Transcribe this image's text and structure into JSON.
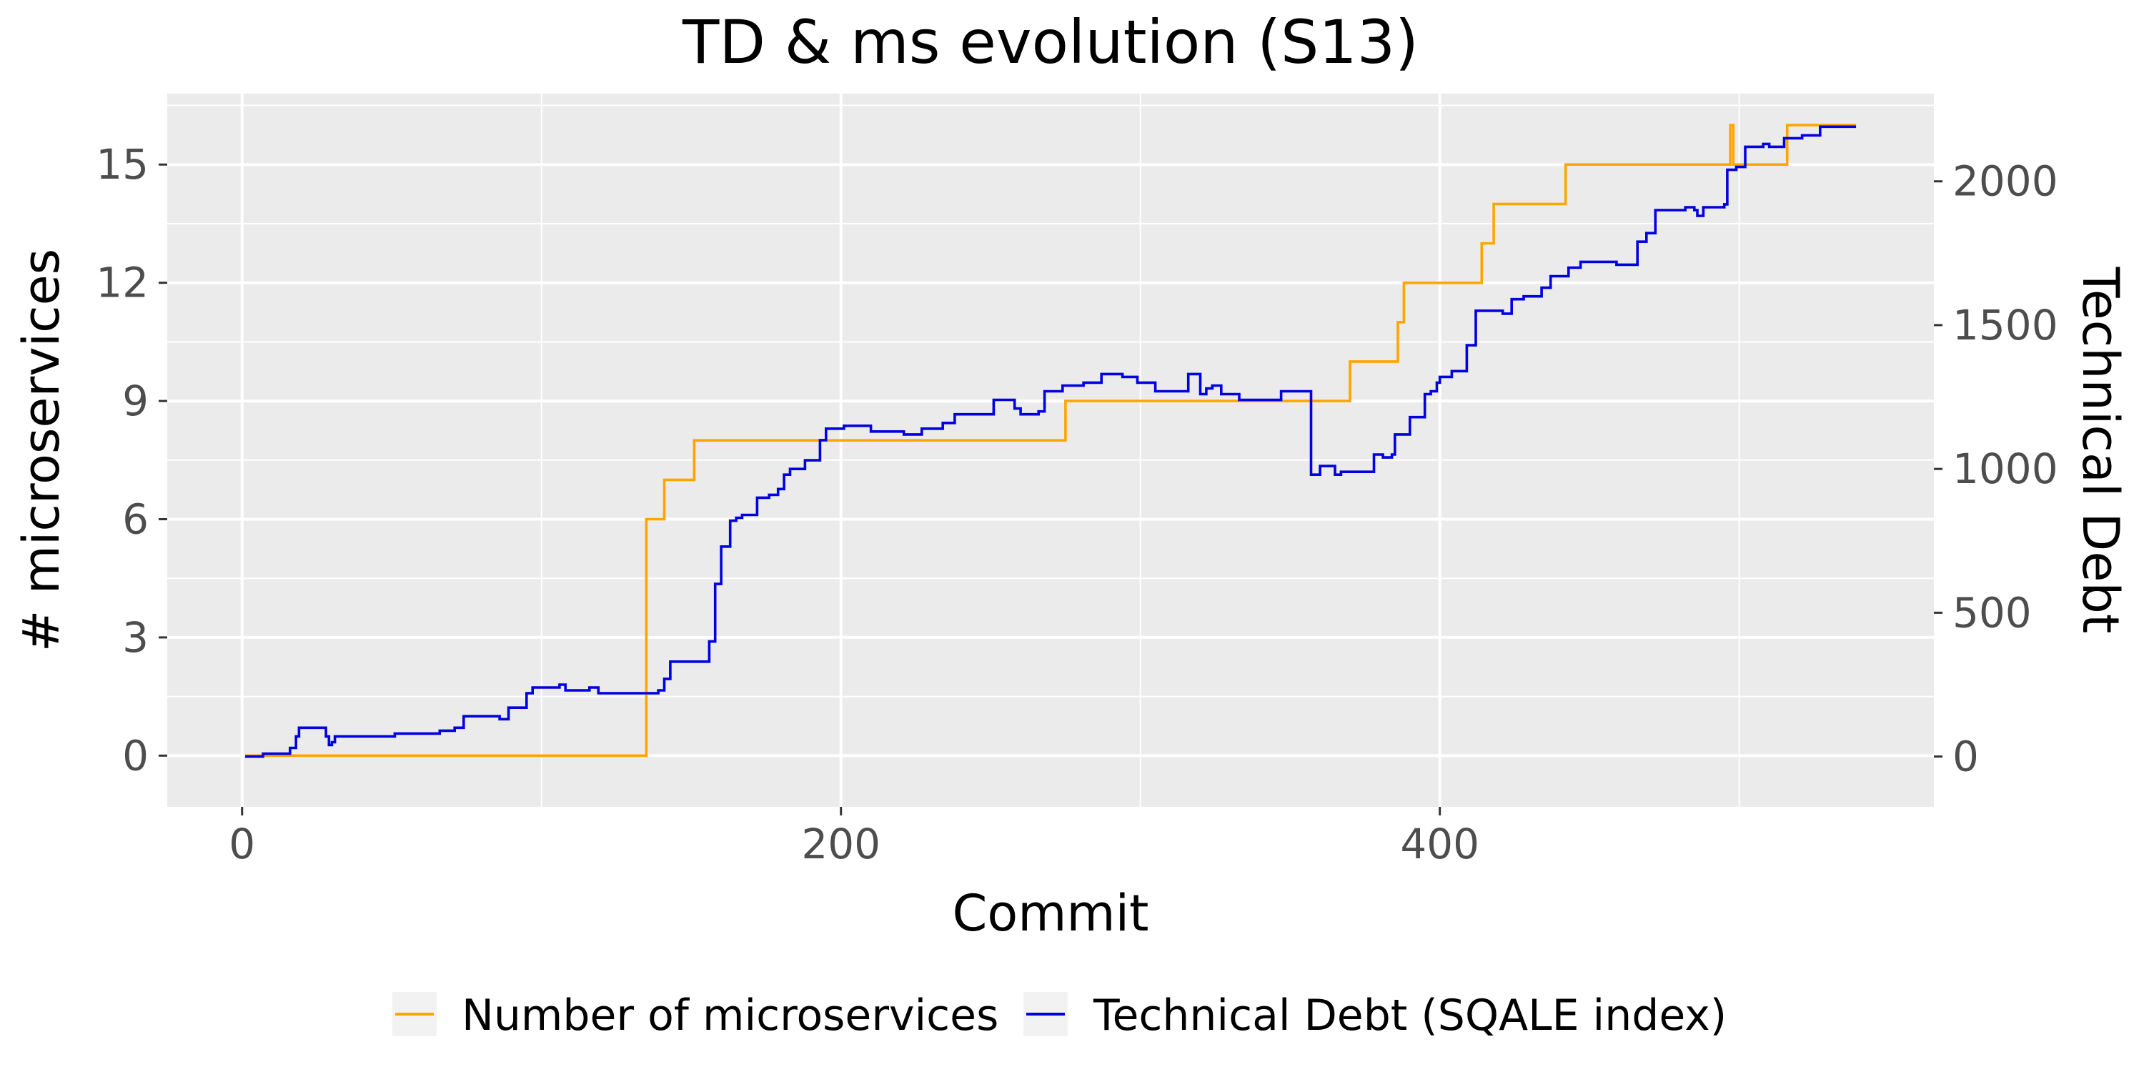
{
  "chart_data": {
    "type": "line",
    "title": "TD & ms evolution (S13)",
    "xlabel": "Commit",
    "ylabel_left": "# microservices",
    "ylabel_right": "Technical Debt",
    "xlim": [
      -25,
      565
    ],
    "x_ticks": [
      0,
      200,
      400
    ],
    "ylim_left": [
      -1.3,
      16.8
    ],
    "y_ticks_left": [
      0,
      3,
      6,
      9,
      12,
      15
    ],
    "ylim_right": [
      -175,
      2305
    ],
    "y_ticks_right": [
      0,
      500,
      1000,
      1500,
      2000
    ],
    "grid": true,
    "legend_position": "bottom",
    "colors": {
      "panel": "#ebebeb",
      "grid": "#ffffff",
      "ms": "#ffa500",
      "td": "#0000e0"
    },
    "series": [
      {
        "name": "Number of microservices",
        "axis": "left",
        "step": true,
        "points": [
          [
            1,
            0
          ],
          [
            135,
            0
          ],
          [
            135,
            6
          ],
          [
            141,
            6
          ],
          [
            141,
            7
          ],
          [
            151,
            7
          ],
          [
            151,
            8
          ],
          [
            275,
            8
          ],
          [
            275,
            9
          ],
          [
            370,
            9
          ],
          [
            370,
            10
          ],
          [
            386,
            10
          ],
          [
            386,
            11
          ],
          [
            388,
            11
          ],
          [
            388,
            12
          ],
          [
            414,
            12
          ],
          [
            414,
            13
          ],
          [
            418,
            13
          ],
          [
            418,
            14
          ],
          [
            442,
            14
          ],
          [
            442,
            15
          ],
          [
            496,
            15
          ],
          [
            497,
            16
          ],
          [
            498,
            15
          ],
          [
            516,
            15
          ],
          [
            516,
            16
          ],
          [
            539,
            16
          ]
        ]
      },
      {
        "name": "Technical Debt (SQALE index)",
        "axis": "right",
        "step": true,
        "points": [
          [
            1,
            0
          ],
          [
            6,
            0
          ],
          [
            7,
            10
          ],
          [
            15,
            10
          ],
          [
            16,
            30
          ],
          [
            18,
            70
          ],
          [
            19,
            100
          ],
          [
            20,
            100
          ],
          [
            21,
            100
          ],
          [
            27,
            100
          ],
          [
            28,
            70
          ],
          [
            29,
            40
          ],
          [
            30,
            50
          ],
          [
            31,
            70
          ],
          [
            50,
            70
          ],
          [
            51,
            80
          ],
          [
            65,
            80
          ],
          [
            66,
            90
          ],
          [
            70,
            90
          ],
          [
            71,
            100
          ],
          [
            73,
            100
          ],
          [
            74,
            140
          ],
          [
            85,
            140
          ],
          [
            86,
            130
          ],
          [
            88,
            130
          ],
          [
            89,
            170
          ],
          [
            94,
            170
          ],
          [
            95,
            220
          ],
          [
            97,
            240
          ],
          [
            105,
            240
          ],
          [
            106,
            250
          ],
          [
            108,
            230
          ],
          [
            115,
            230
          ],
          [
            116,
            240
          ],
          [
            118,
            240
          ],
          [
            119,
            220
          ],
          [
            138,
            220
          ],
          [
            139,
            230
          ],
          [
            141,
            270
          ],
          [
            143,
            330
          ],
          [
            155,
            330
          ],
          [
            156,
            400
          ],
          [
            158,
            600
          ],
          [
            160,
            730
          ],
          [
            162,
            730
          ],
          [
            163,
            820
          ],
          [
            165,
            830
          ],
          [
            167,
            840
          ],
          [
            171,
            840
          ],
          [
            172,
            900
          ],
          [
            175,
            900
          ],
          [
            176,
            910
          ],
          [
            178,
            910
          ],
          [
            179,
            930
          ],
          [
            181,
            980
          ],
          [
            183,
            1000
          ],
          [
            187,
            1000
          ],
          [
            188,
            1030
          ],
          [
            192,
            1030
          ],
          [
            193,
            1100
          ],
          [
            195,
            1140
          ],
          [
            200,
            1140
          ],
          [
            201,
            1150
          ],
          [
            209,
            1150
          ],
          [
            210,
            1130
          ],
          [
            220,
            1130
          ],
          [
            221,
            1120
          ],
          [
            226,
            1120
          ],
          [
            227,
            1140
          ],
          [
            233,
            1140
          ],
          [
            234,
            1160
          ],
          [
            237,
            1160
          ],
          [
            238,
            1190
          ],
          [
            245,
            1190
          ],
          [
            246,
            1190
          ],
          [
            250,
            1190
          ],
          [
            251,
            1240
          ],
          [
            257,
            1240
          ],
          [
            258,
            1210
          ],
          [
            260,
            1190
          ],
          [
            265,
            1190
          ],
          [
            266,
            1200
          ],
          [
            268,
            1270
          ],
          [
            273,
            1270
          ],
          [
            274,
            1290
          ],
          [
            280,
            1290
          ],
          [
            281,
            1300
          ],
          [
            286,
            1300
          ],
          [
            287,
            1330
          ],
          [
            293,
            1330
          ],
          [
            294,
            1320
          ],
          [
            298,
            1320
          ],
          [
            299,
            1300
          ],
          [
            304,
            1300
          ],
          [
            305,
            1270
          ],
          [
            315,
            1270
          ],
          [
            316,
            1330
          ],
          [
            319,
            1330
          ],
          [
            320,
            1260
          ],
          [
            322,
            1280
          ],
          [
            324,
            1290
          ],
          [
            327,
            1260
          ],
          [
            332,
            1260
          ],
          [
            333,
            1240
          ],
          [
            346,
            1240
          ],
          [
            347,
            1270
          ],
          [
            356,
            1270
          ],
          [
            357,
            980
          ],
          [
            359,
            980
          ],
          [
            360,
            1010
          ],
          [
            364,
            1010
          ],
          [
            365,
            980
          ],
          [
            367,
            990
          ],
          [
            371,
            990
          ],
          [
            372,
            990
          ],
          [
            377,
            990
          ],
          [
            378,
            1050
          ],
          [
            381,
            1040
          ],
          [
            384,
            1050
          ],
          [
            385,
            1120
          ],
          [
            389,
            1120
          ],
          [
            390,
            1180
          ],
          [
            394,
            1180
          ],
          [
            395,
            1260
          ],
          [
            397,
            1270
          ],
          [
            399,
            1300
          ],
          [
            400,
            1320
          ],
          [
            404,
            1340
          ],
          [
            408,
            1340
          ],
          [
            409,
            1430
          ],
          [
            411,
            1430
          ],
          [
            412,
            1550
          ],
          [
            420,
            1550
          ],
          [
            421,
            1540
          ],
          [
            423,
            1540
          ],
          [
            424,
            1590
          ],
          [
            427,
            1590
          ],
          [
            428,
            1600
          ],
          [
            433,
            1600
          ],
          [
            434,
            1630
          ],
          [
            436,
            1630
          ],
          [
            437,
            1670
          ],
          [
            442,
            1670
          ],
          [
            443,
            1700
          ],
          [
            446,
            1700
          ],
          [
            447,
            1720
          ],
          [
            458,
            1720
          ],
          [
            459,
            1710
          ],
          [
            465,
            1710
          ],
          [
            466,
            1790
          ],
          [
            469,
            1820
          ],
          [
            471,
            1820
          ],
          [
            472,
            1900
          ],
          [
            482,
            1910
          ],
          [
            485,
            1900
          ],
          [
            486,
            1880
          ],
          [
            488,
            1910
          ],
          [
            495,
            1920
          ],
          [
            496,
            2040
          ],
          [
            498,
            2040
          ],
          [
            499,
            2050
          ],
          [
            502,
            2120
          ],
          [
            507,
            2120
          ],
          [
            508,
            2130
          ],
          [
            510,
            2120
          ],
          [
            514,
            2120
          ],
          [
            515,
            2150
          ],
          [
            520,
            2150
          ],
          [
            521,
            2160
          ],
          [
            526,
            2160
          ],
          [
            527,
            2190
          ],
          [
            536,
            2190
          ],
          [
            537,
            2190
          ],
          [
            539,
            2190
          ]
        ]
      }
    ]
  }
}
